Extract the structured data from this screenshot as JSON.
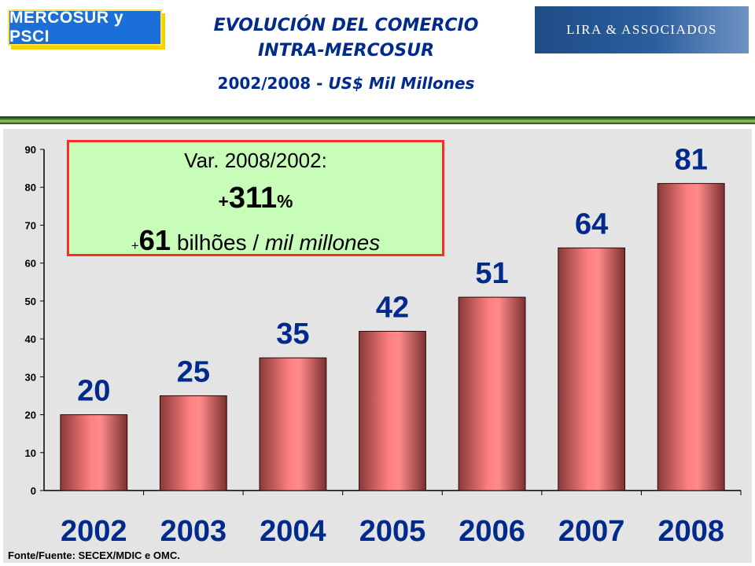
{
  "header": {
    "logo_left": "MERCOSUR y PSCI",
    "logo_right": "LIRA & ASSOCIADOS",
    "title_line1": "EVOLUCIÓN DEL COMERCIO",
    "title_line2": "INTRA-MERCOSUR",
    "subtitle_years": "2002/2008  -",
    "subtitle_unit": "US$ Mil Millones"
  },
  "callout": {
    "line1": "Var. 2008/2002:",
    "pct_sign": "+",
    "pct_value": "311",
    "pct_unit": "%",
    "abs_sign": "+",
    "abs_value": "61",
    "abs_pt": " bilhões / ",
    "abs_es": "mil millones"
  },
  "source": "Fonte/Fuente: SECEX/MDIC e OMC.",
  "colors": {
    "bar": "#ff7f7f",
    "bar_dark": "#8a3a3a",
    "label": "#002a8c",
    "callout_bg": "#c7fcb9",
    "callout_border": "#ff2a2a"
  },
  "chart_data": {
    "type": "bar",
    "categories": [
      "2002",
      "2003",
      "2004",
      "2005",
      "2006",
      "2007",
      "2008"
    ],
    "values": [
      20,
      25,
      35,
      42,
      51,
      64,
      81
    ],
    "data_labels": [
      "20",
      "25",
      "35",
      "42",
      "51",
      "64",
      "81"
    ],
    "y_ticks": [
      0,
      10,
      20,
      30,
      40,
      50,
      60,
      70,
      80,
      90
    ],
    "ylim": [
      0,
      90
    ],
    "grid": false,
    "legend": "none"
  }
}
